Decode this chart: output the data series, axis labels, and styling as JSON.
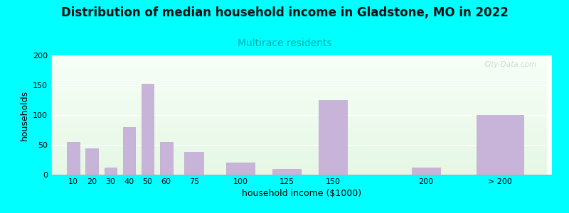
{
  "title": "Distribution of median household income in Gladstone, MO in 2022",
  "subtitle": "Multirace residents",
  "xlabel": "household income ($1000)",
  "ylabel": "households",
  "categories": [
    "10",
    "20",
    "30",
    "40",
    "50",
    "60",
    "75",
    "100",
    "125",
    "150",
    "200",
    "> 200"
  ],
  "x_positions": [
    10,
    20,
    30,
    40,
    50,
    60,
    75,
    100,
    125,
    150,
    200,
    240
  ],
  "bar_widths": [
    8,
    8,
    8,
    8,
    8,
    8,
    12,
    18,
    18,
    18,
    18,
    30
  ],
  "values": [
    55,
    44,
    12,
    80,
    152,
    55,
    38,
    20,
    10,
    125,
    12,
    100
  ],
  "bar_color": "#c8b4d8",
  "bar_edgecolor": "#b8a8cc",
  "background_color": "#00ffff",
  "ylim": [
    0,
    200
  ],
  "yticks": [
    0,
    50,
    100,
    150,
    200
  ],
  "title_fontsize": 12,
  "subtitle_fontsize": 10,
  "subtitle_color": "#00aaaa",
  "axis_label_fontsize": 9,
  "tick_fontsize": 8,
  "watermark": "City-Data.com"
}
